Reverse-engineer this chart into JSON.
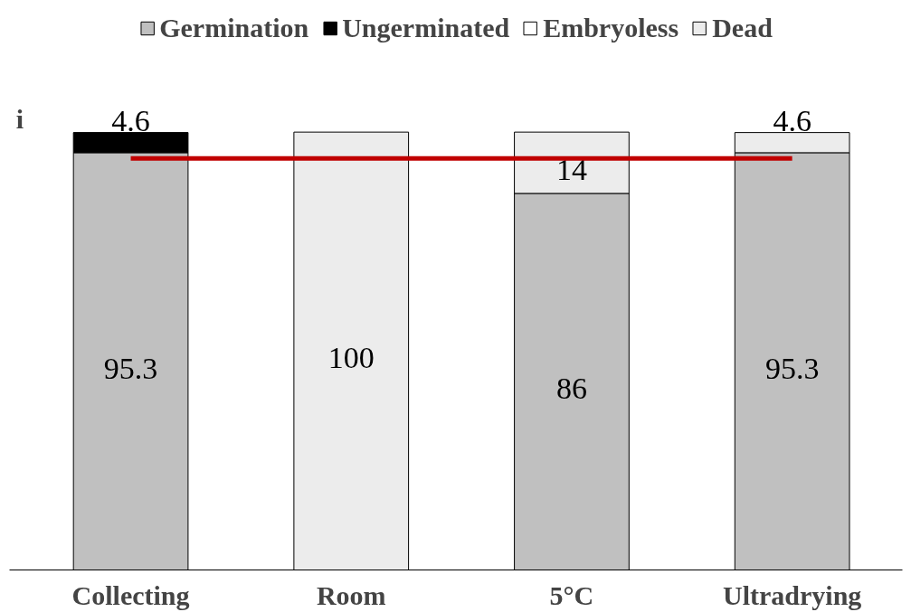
{
  "chart_data": {
    "type": "bar",
    "stacked": true,
    "categories": [
      "Collecting",
      "Room",
      "5°C",
      "Ultradrying"
    ],
    "series": [
      {
        "name": "Germination",
        "color": "#c0c0c0",
        "values": [
          95.3,
          null,
          86,
          95.3
        ],
        "value_labels": [
          "95.3",
          null,
          "86",
          "95.3"
        ]
      },
      {
        "name": "Ungerminated",
        "color": "#000000",
        "values": [
          4.6,
          null,
          null,
          null
        ],
        "value_labels": [
          "4.6",
          null,
          null,
          null
        ]
      },
      {
        "name": "Embryoless",
        "color": "#ffffff",
        "values": [
          null,
          null,
          null,
          null
        ],
        "value_labels": [
          null,
          null,
          null,
          null
        ]
      },
      {
        "name": "Dead",
        "color": "#ececec",
        "values": [
          null,
          100,
          14,
          4.6
        ],
        "value_labels": [
          null,
          "100",
          "14",
          "4.6"
        ]
      },
      {
        "type": "line",
        "color": "#c00000",
        "values": [
          94,
          94,
          94,
          94
        ]
      }
    ],
    "annotations": [
      "i"
    ],
    "legend": "top",
    "grid": false
  }
}
